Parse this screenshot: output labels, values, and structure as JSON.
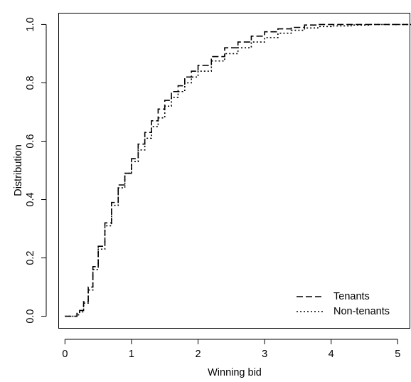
{
  "chart_data": {
    "type": "line",
    "title": "",
    "xlabel": "Winning bid",
    "ylabel": "Distribution",
    "xlim": [
      -0.1,
      5.2
    ],
    "ylim": [
      -0.04,
      1.04
    ],
    "grid": false,
    "legend_position": "bottom-right",
    "x_ticks": [
      0,
      1,
      2,
      3,
      4,
      5
    ],
    "x_tick_labels": [
      "0",
      "1",
      "2",
      "3",
      "4",
      "5"
    ],
    "y_ticks": [
      0.0,
      0.2,
      0.4,
      0.6,
      0.8,
      1.0
    ],
    "y_tick_labels": [
      "0.0",
      "0.2",
      "0.4",
      "0.6",
      "0.8",
      "1.0"
    ],
    "series": [
      {
        "name": "Tenants",
        "line_style": "dashed",
        "color": "#000000",
        "points": [
          [
            0.0,
            0.0
          ],
          [
            0.12,
            0.0
          ],
          [
            0.18,
            0.01
          ],
          [
            0.22,
            0.02
          ],
          [
            0.28,
            0.05
          ],
          [
            0.35,
            0.1
          ],
          [
            0.42,
            0.17
          ],
          [
            0.5,
            0.24
          ],
          [
            0.6,
            0.32
          ],
          [
            0.7,
            0.39
          ],
          [
            0.8,
            0.45
          ],
          [
            0.9,
            0.49
          ],
          [
            1.0,
            0.54
          ],
          [
            1.1,
            0.59
          ],
          [
            1.2,
            0.63
          ],
          [
            1.3,
            0.67
          ],
          [
            1.4,
            0.71
          ],
          [
            1.5,
            0.74
          ],
          [
            1.6,
            0.77
          ],
          [
            1.7,
            0.79
          ],
          [
            1.8,
            0.82
          ],
          [
            1.9,
            0.84
          ],
          [
            2.0,
            0.86
          ],
          [
            2.2,
            0.89
          ],
          [
            2.4,
            0.92
          ],
          [
            2.6,
            0.94
          ],
          [
            2.8,
            0.96
          ],
          [
            3.0,
            0.975
          ],
          [
            3.2,
            0.985
          ],
          [
            3.4,
            0.99
          ],
          [
            3.6,
            0.998
          ],
          [
            3.8,
            1.0
          ],
          [
            4.0,
            1.0
          ],
          [
            4.5,
            1.0
          ],
          [
            5.2,
            1.0
          ]
        ]
      },
      {
        "name": "Non-tenants",
        "line_style": "dotted",
        "color": "#000000",
        "points": [
          [
            0.0,
            0.0
          ],
          [
            0.12,
            0.0
          ],
          [
            0.18,
            0.005
          ],
          [
            0.22,
            0.015
          ],
          [
            0.28,
            0.045
          ],
          [
            0.35,
            0.09
          ],
          [
            0.42,
            0.16
          ],
          [
            0.5,
            0.23
          ],
          [
            0.6,
            0.31
          ],
          [
            0.7,
            0.38
          ],
          [
            0.8,
            0.44
          ],
          [
            0.9,
            0.49
          ],
          [
            1.0,
            0.53
          ],
          [
            1.1,
            0.57
          ],
          [
            1.2,
            0.61
          ],
          [
            1.3,
            0.65
          ],
          [
            1.4,
            0.68
          ],
          [
            1.5,
            0.72
          ],
          [
            1.6,
            0.75
          ],
          [
            1.7,
            0.77
          ],
          [
            1.8,
            0.8
          ],
          [
            1.9,
            0.82
          ],
          [
            2.0,
            0.84
          ],
          [
            2.2,
            0.875
          ],
          [
            2.4,
            0.9
          ],
          [
            2.6,
            0.92
          ],
          [
            2.8,
            0.94
          ],
          [
            3.0,
            0.955
          ],
          [
            3.2,
            0.97
          ],
          [
            3.4,
            0.98
          ],
          [
            3.6,
            0.988
          ],
          [
            3.8,
            0.993
          ],
          [
            4.0,
            0.995
          ],
          [
            4.3,
            0.998
          ],
          [
            4.6,
            1.0
          ],
          [
            5.2,
            1.0
          ]
        ]
      }
    ]
  }
}
